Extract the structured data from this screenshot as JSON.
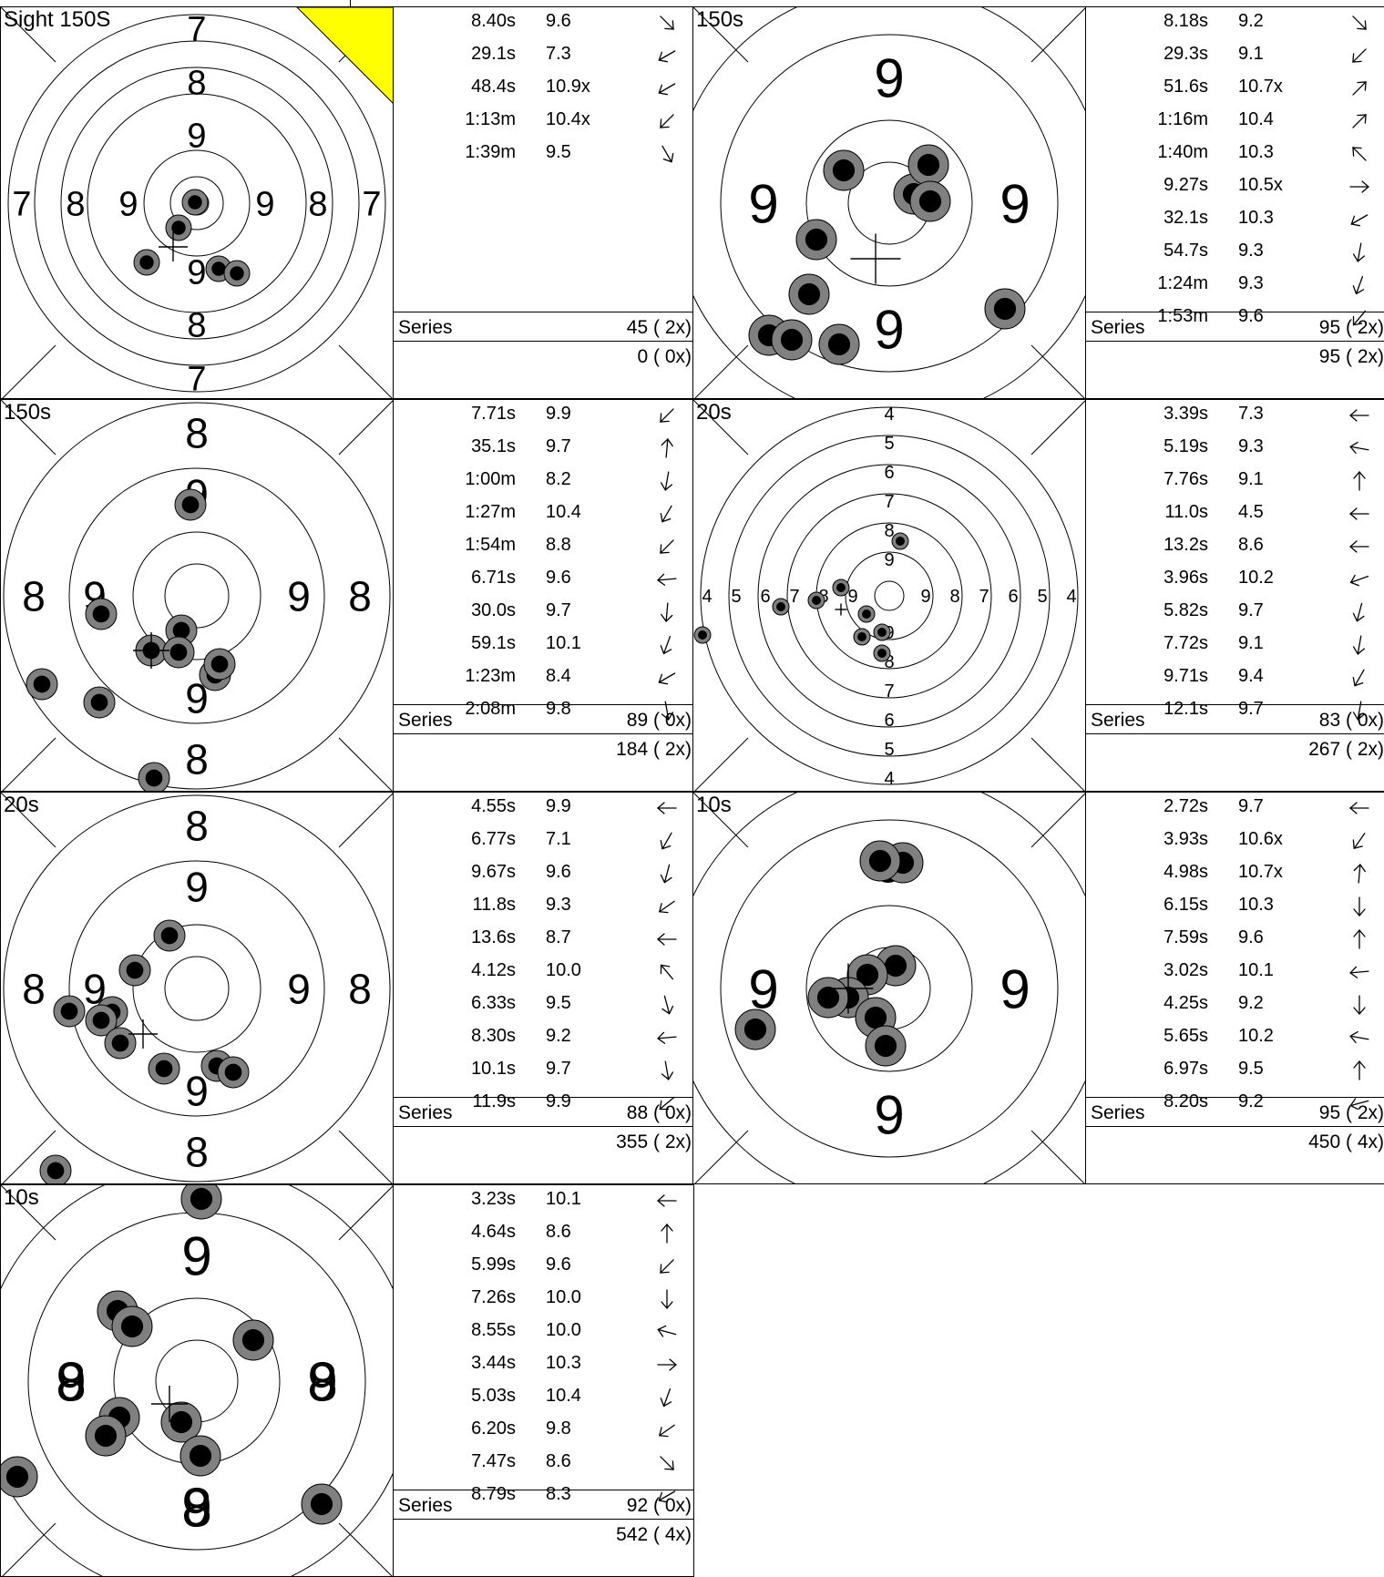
{
  "panels": [
    {
      "label": "Sight 150S",
      "target": "big",
      "ring_labels": {
        "left": [
          "7",
          "8",
          "9"
        ],
        "right": [
          "9",
          "8",
          "7"
        ],
        "top": [
          "7",
          "8",
          "9"
        ],
        "bottom": [
          "9",
          "8",
          "7"
        ]
      },
      "flag": true,
      "shots": [
        {
          "time": "8.40s",
          "score": "9.6",
          "dir": 135
        },
        {
          "time": "29.1s",
          "score": "7.3",
          "dir": 240
        },
        {
          "time": "48.4s",
          "score": "10.9x",
          "dir": 240
        },
        {
          "time": "1:13m",
          "score": "10.4x",
          "dir": 225
        },
        {
          "time": "1:39m",
          "score": "9.5",
          "dir": 150
        }
      ],
      "series_label": "Series",
      "series": "45 ( 2x)",
      "total": "0 ( 0x)"
    },
    {
      "label": "150s",
      "target": "zoom9",
      "ring_labels": {
        "left": [
          "9"
        ],
        "right": [
          "9"
        ],
        "top": [
          "9"
        ],
        "bottom": [
          "9"
        ]
      },
      "flag": false,
      "shots": [
        {
          "time": "8.18s",
          "score": "9.2",
          "dir": 135
        },
        {
          "time": "29.3s",
          "score": "9.1",
          "dir": 225
        },
        {
          "time": "51.6s",
          "score": "10.7x",
          "dir": 45
        },
        {
          "time": "1:16m",
          "score": "10.4",
          "dir": 45
        },
        {
          "time": "1:40m",
          "score": "10.3",
          "dir": 315
        },
        {
          "time": "9.27s",
          "score": "10.5x",
          "dir": 90
        },
        {
          "time": "32.1s",
          "score": "10.3",
          "dir": 240
        },
        {
          "time": "54.7s",
          "score": "9.3",
          "dir": 190
        },
        {
          "time": "1:24m",
          "score": "9.3",
          "dir": 200
        },
        {
          "time": "1:53m",
          "score": "9.6",
          "dir": 220
        }
      ],
      "series_label": "Series",
      "series": "95 ( 2x)",
      "total": "95 ( 2x)"
    },
    {
      "label": "150s",
      "target": "mid",
      "ring_labels": {
        "left": [
          "8",
          "9"
        ],
        "right": [
          "9",
          "8"
        ],
        "top": [
          "8",
          "9"
        ],
        "bottom": [
          "9",
          "8"
        ]
      },
      "flag": false,
      "shots": [
        {
          "time": "7.71s",
          "score": "9.9",
          "dir": 225
        },
        {
          "time": "35.1s",
          "score": "9.7",
          "dir": 5
        },
        {
          "time": "1:00m",
          "score": "8.2",
          "dir": 190
        },
        {
          "time": "1:27m",
          "score": "10.4",
          "dir": 210
        },
        {
          "time": "1:54m",
          "score": "8.8",
          "dir": 225
        },
        {
          "time": "6.71s",
          "score": "9.6",
          "dir": 265
        },
        {
          "time": "30.0s",
          "score": "9.7",
          "dir": 185
        },
        {
          "time": "59.1s",
          "score": "10.1",
          "dir": 200
        },
        {
          "time": "1:23m",
          "score": "8.4",
          "dir": 240
        },
        {
          "time": "2:08m",
          "score": "9.8",
          "dir": 170
        }
      ],
      "series_label": "Series",
      "series": "89 ( 0x)",
      "total": "184 ( 2x)"
    },
    {
      "label": "20s",
      "target": "full",
      "ring_labels": {
        "left": [
          "4",
          "5",
          "6",
          "7",
          "8",
          "9"
        ],
        "right": [
          "9",
          "8",
          "7",
          "6",
          "5",
          "4"
        ],
        "top": [
          "4",
          "5",
          "6",
          "7",
          "8",
          "9"
        ],
        "bottom": [
          "9",
          "8",
          "7",
          "6",
          "5",
          "4"
        ]
      },
      "flag": false,
      "shots": [
        {
          "time": "3.39s",
          "score": "7.3",
          "dir": 270
        },
        {
          "time": "5.19s",
          "score": "9.3",
          "dir": 280
        },
        {
          "time": "7.76s",
          "score": "9.1",
          "dir": 0
        },
        {
          "time": "11.0s",
          "score": "4.5",
          "dir": 270
        },
        {
          "time": "13.2s",
          "score": "8.6",
          "dir": 270
        },
        {
          "time": "3.96s",
          "score": "10.2",
          "dir": 250
        },
        {
          "time": "5.82s",
          "score": "9.7",
          "dir": 195
        },
        {
          "time": "7.72s",
          "score": "9.1",
          "dir": 190
        },
        {
          "time": "9.71s",
          "score": "9.4",
          "dir": 210
        },
        {
          "time": "12.1s",
          "score": "9.7",
          "dir": 190
        }
      ],
      "series_label": "Series",
      "series": "83 ( 0x)",
      "total": "267 ( 2x)"
    },
    {
      "label": "20s",
      "target": "mid",
      "ring_labels": {
        "left": [
          "8",
          "9"
        ],
        "right": [
          "9",
          "8"
        ],
        "top": [
          "8",
          "9"
        ],
        "bottom": [
          "9",
          "8"
        ]
      },
      "flag": false,
      "shots": [
        {
          "time": "4.55s",
          "score": "9.9",
          "dir": 270
        },
        {
          "time": "6.77s",
          "score": "7.1",
          "dir": 210
        },
        {
          "time": "9.67s",
          "score": "9.6",
          "dir": 195
        },
        {
          "time": "11.8s",
          "score": "9.3",
          "dir": 235
        },
        {
          "time": "13.6s",
          "score": "8.7",
          "dir": 270
        },
        {
          "time": "4.12s",
          "score": "10.0",
          "dir": 320
        },
        {
          "time": "6.33s",
          "score": "9.5",
          "dir": 165
        },
        {
          "time": "8.30s",
          "score": "9.2",
          "dir": 265
        },
        {
          "time": "10.1s",
          "score": "9.7",
          "dir": 170
        },
        {
          "time": "11.9s",
          "score": "9.9",
          "dir": 230
        }
      ],
      "series_label": "Series",
      "series": "88 ( 0x)",
      "total": "355 ( 2x)"
    },
    {
      "label": "10s",
      "target": "zoom9",
      "ring_labels": {
        "left": [
          "9"
        ],
        "right": [
          "9"
        ],
        "top": [
          "9"
        ],
        "bottom": [
          "9"
        ]
      },
      "flag": false,
      "shots": [
        {
          "time": "2.72s",
          "score": "9.7",
          "dir": 270
        },
        {
          "time": "3.93s",
          "score": "10.6x",
          "dir": 215
        },
        {
          "time": "4.98s",
          "score": "10.7x",
          "dir": 5
        },
        {
          "time": "6.15s",
          "score": "10.3",
          "dir": 180
        },
        {
          "time": "7.59s",
          "score": "9.6",
          "dir": 0
        },
        {
          "time": "3.02s",
          "score": "10.1",
          "dir": 265
        },
        {
          "time": "4.25s",
          "score": "9.2",
          "dir": 180
        },
        {
          "time": "5.65s",
          "score": "10.2",
          "dir": 280
        },
        {
          "time": "6.97s",
          "score": "9.5",
          "dir": 0
        },
        {
          "time": "8.20s",
          "score": "9.2",
          "dir": 255
        }
      ],
      "series_label": "Series",
      "series": "95 ( 2x)",
      "total": "450 ( 4x)"
    },
    {
      "label": "10s",
      "target": "zoom9",
      "ring_labels": {
        "left": [
          "8",
          "9"
        ],
        "right": [
          "9",
          "8"
        ],
        "top": [
          "9"
        ],
        "bottom": [
          "9",
          "8"
        ]
      },
      "flag": false,
      "shots": [
        {
          "time": "3.23s",
          "score": "10.1",
          "dir": 270
        },
        {
          "time": "4.64s",
          "score": "8.6",
          "dir": 0
        },
        {
          "time": "5.99s",
          "score": "9.6",
          "dir": 225
        },
        {
          "time": "7.26s",
          "score": "10.0",
          "dir": 180
        },
        {
          "time": "8.55s",
          "score": "10.0",
          "dir": 285
        },
        {
          "time": "3.44s",
          "score": "10.3",
          "dir": 90
        },
        {
          "time": "5.03s",
          "score": "10.4",
          "dir": 200
        },
        {
          "time": "6.20s",
          "score": "9.8",
          "dir": 235
        },
        {
          "time": "7.47s",
          "score": "8.6",
          "dir": 135
        },
        {
          "time": "8.79s",
          "score": "8.3",
          "dir": 240
        }
      ],
      "series_label": "Series",
      "series": "92 ( 0x)",
      "total": "542 ( 4x)"
    }
  ]
}
